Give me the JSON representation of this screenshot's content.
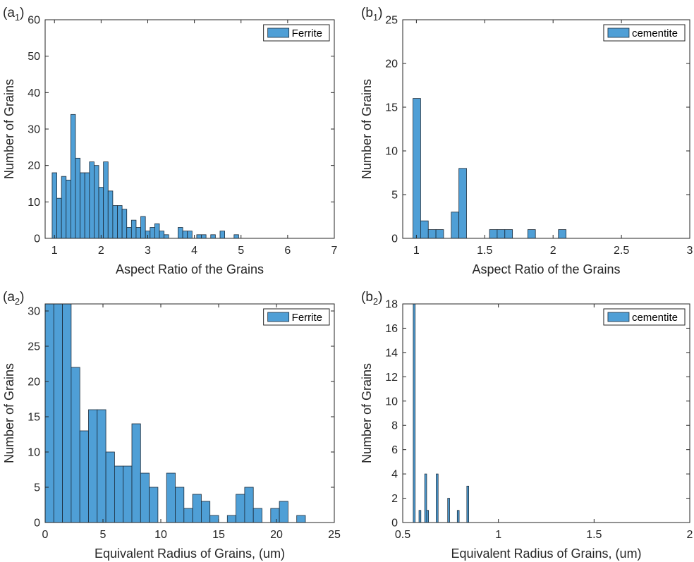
{
  "colors": {
    "bar_fill": "#4f9fd6",
    "bar_edge": "#1b2b3a",
    "axis": "#262626",
    "background": "#ffffff"
  },
  "chart_data": [
    {
      "panel": "(a1)",
      "panel_label": "(a",
      "panel_sub": "1",
      "type": "bar",
      "title": "",
      "xlabel": "Aspect Ratio of the Grains",
      "ylabel": "Number of Grains",
      "xlim": [
        0.8,
        7
      ],
      "ylim": [
        0,
        60
      ],
      "xticks": [
        1,
        2,
        3,
        4,
        5,
        6,
        7
      ],
      "yticks": [
        0,
        10,
        20,
        30,
        40,
        50,
        60
      ],
      "bin_width": 0.1,
      "legend": "Ferrite",
      "legend_position": "top-right",
      "grid": false,
      "bin_starts": [
        0.95,
        1.05,
        1.15,
        1.25,
        1.35,
        1.45,
        1.55,
        1.65,
        1.75,
        1.85,
        1.95,
        2.05,
        2.15,
        2.25,
        2.35,
        2.45,
        2.55,
        2.65,
        2.75,
        2.85,
        2.95,
        3.05,
        3.15,
        3.25,
        3.35,
        3.65,
        3.75,
        3.85,
        4.05,
        4.15,
        4.35,
        4.55,
        4.85
      ],
      "values": [
        18,
        11,
        17,
        16,
        34,
        22,
        18,
        18,
        21,
        20,
        14,
        21,
        13,
        9,
        9,
        8,
        3,
        5,
        3,
        6,
        2,
        3,
        4,
        2,
        1,
        3,
        2,
        2,
        1,
        1,
        1,
        2,
        1
      ]
    },
    {
      "panel": "(b1)",
      "panel_label": "(b",
      "panel_sub": "1",
      "type": "bar",
      "title": "",
      "xlabel": "Aspect Ratio of the Grains",
      "ylabel": "Number of Grains",
      "xlim": [
        0.9,
        3
      ],
      "ylim": [
        0,
        25
      ],
      "xticks": [
        1,
        1.5,
        2,
        2.5,
        3
      ],
      "yticks": [
        0,
        5,
        10,
        15,
        20,
        25
      ],
      "bin_width": 0.056,
      "legend": "cementite",
      "legend_position": "top-right",
      "grid": false,
      "bin_starts": [
        0.975,
        1.031,
        1.087,
        1.143,
        1.199,
        1.255,
        1.311,
        1.367,
        1.423,
        1.479,
        1.535,
        1.591,
        1.647,
        1.703,
        1.759,
        1.815,
        1.871,
        1.927,
        1.983,
        2.039
      ],
      "values": [
        16,
        2,
        1,
        1,
        0,
        3,
        8,
        0,
        0,
        0,
        1,
        1,
        1,
        0,
        0,
        1,
        0,
        0,
        0,
        1
      ]
    },
    {
      "panel": "(a2)",
      "panel_label": "(a",
      "panel_sub": "2",
      "type": "bar",
      "title": "",
      "xlabel": "Equivalent Radius of Grains, (um)",
      "ylabel": "Number of Grains",
      "xlim": [
        0,
        25
      ],
      "ylim": [
        0,
        31
      ],
      "xticks": [
        0,
        5,
        10,
        15,
        20,
        25
      ],
      "yticks": [
        0,
        5,
        10,
        15,
        20,
        25,
        30
      ],
      "bin_width": 0.75,
      "legend": "Ferrite",
      "legend_position": "top-right",
      "grid": false,
      "bin_starts": [
        0,
        0.75,
        1.5,
        2.25,
        3,
        3.75,
        4.5,
        5.25,
        6,
        6.75,
        7.5,
        8.25,
        9,
        9.75,
        10.5,
        11.25,
        12,
        12.75,
        13.5,
        14.25,
        15,
        15.75,
        16.5,
        17.25,
        18,
        18.75,
        19.5,
        20.25,
        21,
        21.75
      ],
      "values": [
        31,
        31,
        31,
        22,
        13,
        16,
        16,
        10,
        8,
        8,
        14,
        7,
        5,
        0,
        7,
        5,
        2,
        4,
        3,
        1,
        0,
        1,
        4,
        5,
        2,
        0,
        2,
        3,
        0,
        1
      ]
    },
    {
      "panel": "(b2)",
      "panel_label": "(b",
      "panel_sub": "2",
      "type": "bar",
      "title": "",
      "xlabel": "Equivalent Radius of Grains, (um)",
      "ylabel": "Number of Grains",
      "xlim": [
        0.5,
        2
      ],
      "ylim": [
        0,
        18
      ],
      "xticks": [
        0.5,
        1,
        1.5,
        2
      ],
      "yticks": [
        0,
        2,
        4,
        6,
        8,
        10,
        12,
        14,
        16,
        18
      ],
      "bin_width": 0.01,
      "legend": "cementite",
      "legend_position": "top-right",
      "grid": false,
      "bin_starts": [
        0.555,
        0.585,
        0.615,
        0.625,
        0.675,
        0.735,
        0.785,
        0.835
      ],
      "values": [
        18,
        1,
        4,
        1,
        4,
        2,
        1,
        3
      ]
    }
  ]
}
